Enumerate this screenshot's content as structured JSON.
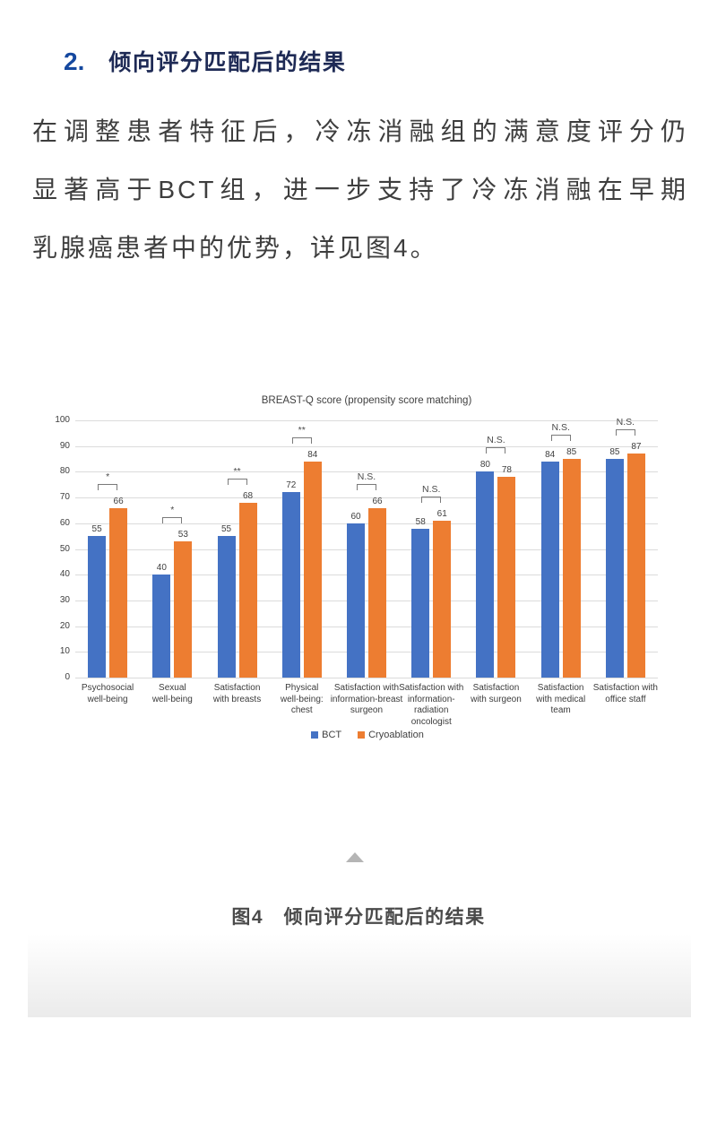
{
  "page": {
    "section_number": "2.",
    "section_title": "倾向评分匹配后的结果",
    "paragraph_lines": [
      "在调整患者特征后，冷冻消融组的满意度评分仍",
      "显著高于BCT组，进一步支持了冷冻消融在早期",
      "乳腺癌患者中的优势，详见图4。"
    ],
    "figure_caption": "图4　倾向评分匹配后的结果"
  },
  "chart_data": {
    "type": "bar",
    "title": "BREAST-Q score (propensity score matching)",
    "categories": [
      [
        "Psychosocial",
        "well-being"
      ],
      [
        "Sexual",
        "well-being"
      ],
      [
        "Satisfaction",
        "with breasts"
      ],
      [
        "Physical",
        "well-being:",
        "chest"
      ],
      [
        "Satisfaction with",
        "information-breast",
        "surgeon"
      ],
      [
        "Satisfaction with",
        "information-",
        "radiation",
        "oncologist"
      ],
      [
        "Satisfaction",
        "with surgeon"
      ],
      [
        "Satisfaction",
        "with medical",
        "team"
      ],
      [
        "Satisfaction with",
        "office staff"
      ]
    ],
    "series": [
      {
        "name": "BCT",
        "color": "#4472c4",
        "values": [
          55,
          40,
          55,
          72,
          60,
          58,
          80,
          84,
          85
        ]
      },
      {
        "name": "Cryoablation",
        "color": "#ed7d31",
        "values": [
          66,
          53,
          68,
          84,
          66,
          61,
          78,
          85,
          87
        ]
      }
    ],
    "significance": [
      "*",
      "*",
      "**",
      "**",
      "N.S.",
      "N.S.",
      "N.S.",
      "N.S.",
      "N.S."
    ],
    "xlabel": "",
    "ylabel": "",
    "ylim": [
      0,
      100
    ],
    "ytick_step": 10,
    "grid": true,
    "legend_position": "bottom"
  },
  "colors": {
    "heading_number": "#15489f",
    "heading_text": "#1e2a55",
    "body_text": "#3e3e3e",
    "chart_text": "#3f3f3f",
    "gridline": "#dbdbdb",
    "bracket": "#7a7a7a",
    "triangle": "#b5b5b5",
    "caption_text": "#4a4a4a"
  }
}
